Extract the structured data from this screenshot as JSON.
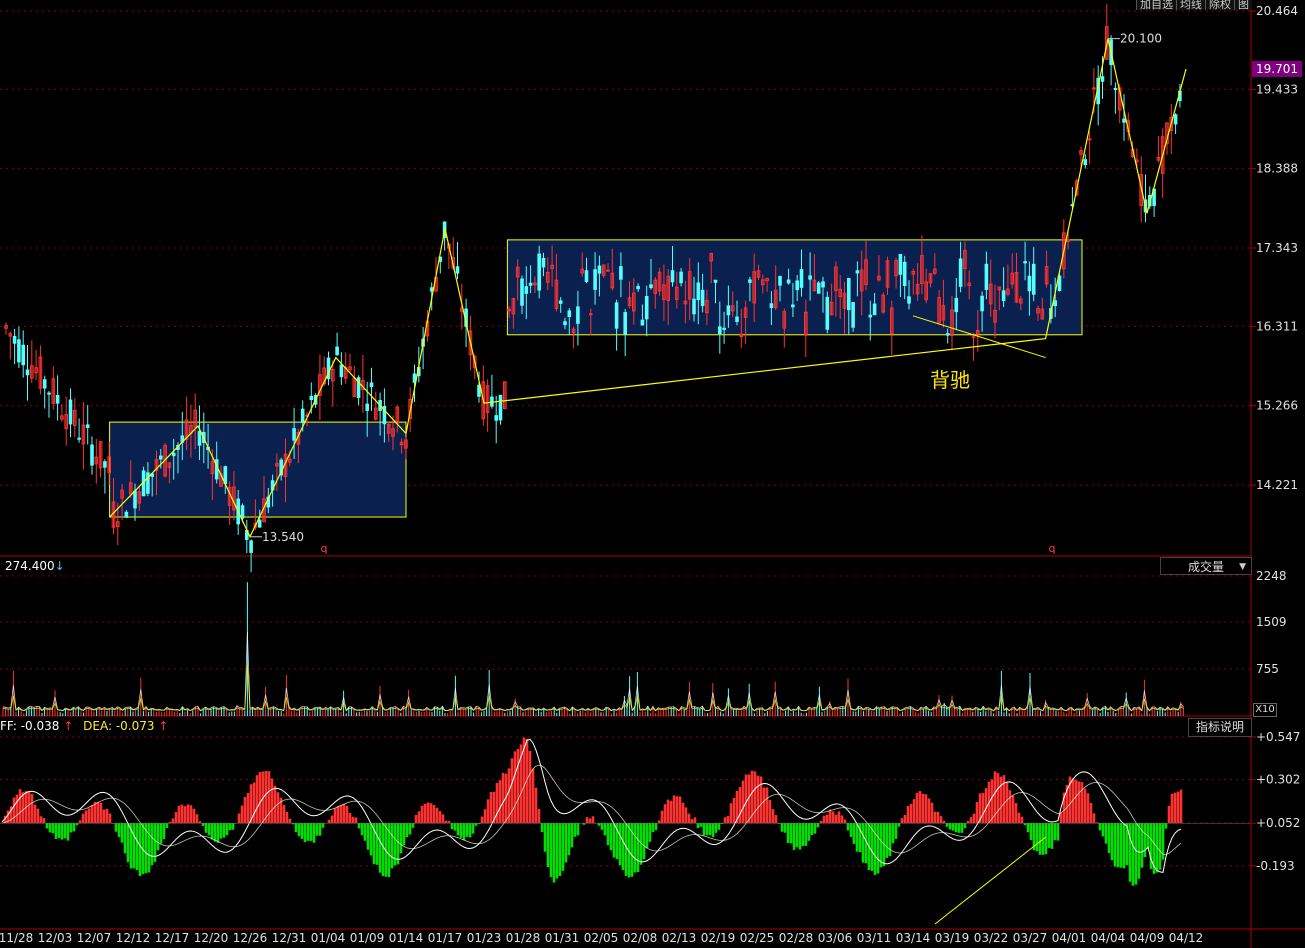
{
  "toolbar": {
    "items": [
      "加自选",
      "均线",
      "除权",
      "图"
    ]
  },
  "price_axis": {
    "ticks": [
      "20.464",
      "19.433",
      "18.388",
      "17.343",
      "16.311",
      "15.266",
      "14.221"
    ],
    "current_price": "19.701",
    "current_color": "#800080"
  },
  "annotations": {
    "high_label": "20.100",
    "low_label": "13.540",
    "divergence_text": "背驰",
    "marker_q": "q"
  },
  "volume_panel": {
    "reading": "274.400",
    "reading_arrow": "↓",
    "selector_label": "成交量",
    "selector_caret": "▼",
    "ticks": [
      "2248",
      "1509",
      "755"
    ],
    "scale_label": "X10"
  },
  "macd_panel": {
    "diff_text": "FF: -0.038",
    "diff_arrow": "↑",
    "dea_text": "DEA: -0.073",
    "dea_arrow": "↑",
    "help_button": "指标说明",
    "ticks": [
      "+0.547",
      "+0.302",
      "+0.052",
      "-0.193"
    ]
  },
  "x_axis": {
    "dates": [
      "11/28",
      "12/03",
      "12/07",
      "12/12",
      "12/17",
      "12/20",
      "12/26",
      "12/31",
      "01/04",
      "01/09",
      "01/14",
      "01/17",
      "01/23",
      "01/28",
      "01/31",
      "02/05",
      "02/08",
      "02/13",
      "02/19",
      "02/25",
      "02/28",
      "03/06",
      "03/11",
      "03/14",
      "03/19",
      "03/22",
      "03/27",
      "04/01",
      "04/04",
      "04/09",
      "04/12"
    ]
  },
  "colors": {
    "up": "#ff3232",
    "down": "#54ffff",
    "yellow": "#ffff00",
    "consolidation_box": "#0a2150",
    "grid": "#8b0000",
    "axis_text": "#e0e0e0",
    "macd_pos": "#ff3232",
    "macd_neg": "#00e000"
  },
  "chart_data": {
    "type": "candlestick",
    "price_range": [
      13.3,
      20.464
    ],
    "zigzag_pivots": [
      {
        "date": "12/09",
        "price": 13.8
      },
      {
        "date": "12/19",
        "price": 15.0
      },
      {
        "date": "12/26",
        "price": 13.54
      },
      {
        "date": "01/05",
        "price": 15.9
      },
      {
        "date": "01/14",
        "price": 14.9
      },
      {
        "date": "01/17",
        "price": 17.6
      },
      {
        "date": "01/23",
        "price": 15.3
      },
      {
        "date": "03/29",
        "price": 16.15
      },
      {
        "date": "04/04",
        "price": 20.1
      },
      {
        "date": "04/09",
        "price": 17.8
      },
      {
        "date": "04/12",
        "price": 19.7
      }
    ],
    "consolidation_zones": [
      {
        "from": "12/09",
        "to": "01/14",
        "low": 13.8,
        "high": 15.05
      },
      {
        "from": "01/26",
        "to": "04/02",
        "low": 16.2,
        "high": 17.45
      }
    ],
    "divergence_line": [
      {
        "date": "03/14",
        "price": 16.45
      },
      {
        "date": "03/29",
        "price": 15.9
      }
    ],
    "volume_range": [
      0,
      2248
    ],
    "macd_range": [
      -0.55,
      0.547
    ],
    "macd_divergence_line": [
      {
        "date": "03/14",
        "value": -0.49
      },
      {
        "date": "03/29",
        "value": -0.08
      }
    ]
  }
}
